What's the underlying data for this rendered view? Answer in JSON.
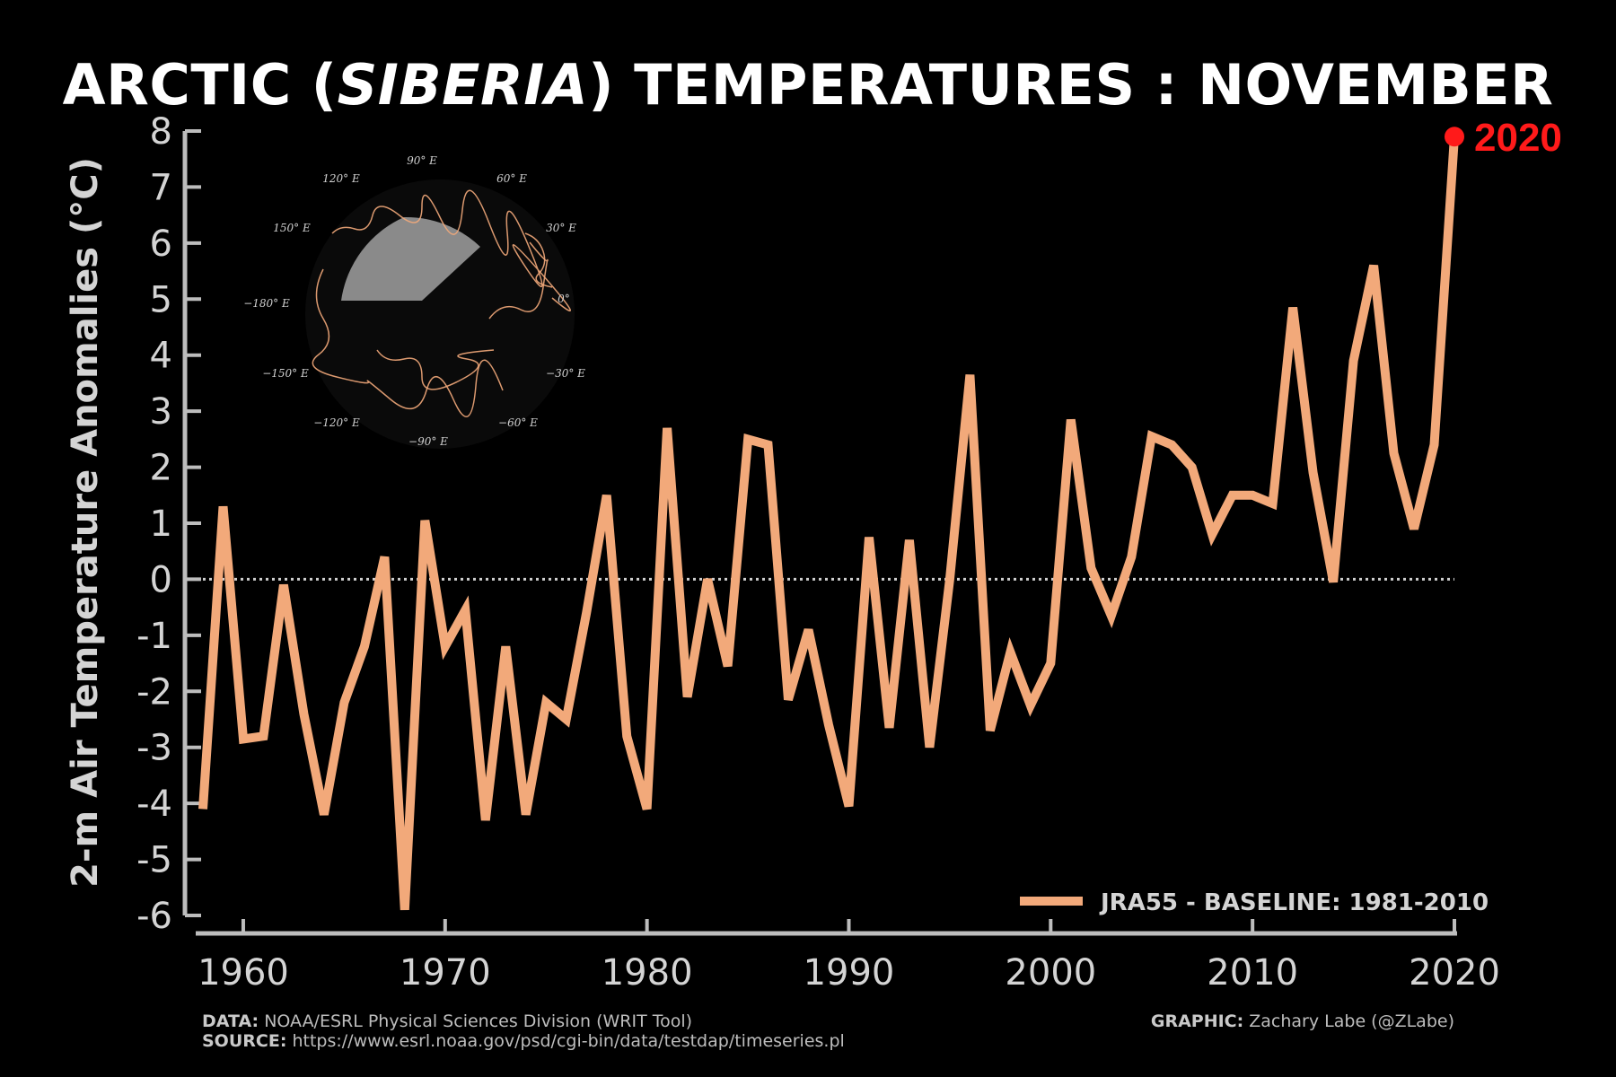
{
  "title": {
    "prefix": "ARCTIC (",
    "italic": "SIBERIA",
    "suffix": ") TEMPERATURES : NOVEMBER"
  },
  "colors": {
    "background": "#000000",
    "line": "#f2a97a",
    "highlight": "#ff1a1a",
    "axis": "#bdbdbd",
    "text": "#d4d4d4"
  },
  "footer": {
    "data_label": "DATA:",
    "data_text": "NOAA/ESRL Physical Sciences Division (WRIT Tool)",
    "source_label": "SOURCE:",
    "source_text": "https://www.esrl.noaa.gov/psd/cgi-bin/data/testdap/timeseries.pl",
    "graphic_label": "GRAPHIC:",
    "graphic_text": "Zachary Labe (@ZLabe)"
  },
  "inset_map": {
    "labels": [
      "90° E",
      "60° E",
      "120° E",
      "150° E",
      "30° E",
      "−180° E",
      "0°",
      "−150° E",
      "−30° E",
      "−120° E",
      "−60° E",
      "−90° E"
    ]
  },
  "chart_data": {
    "type": "line",
    "title": "ARCTIC (SIBERIA) TEMPERATURES : NOVEMBER",
    "xlabel": "",
    "ylabel": "2-m Air Temperature Anomalies (°C)",
    "xlim": [
      1958,
      2020
    ],
    "ylim": [
      -6,
      8
    ],
    "xticks": [
      1960,
      1970,
      1980,
      1990,
      2000,
      2010,
      2020
    ],
    "yticks": [
      -6,
      -5,
      -4,
      -3,
      -2,
      -1,
      0,
      1,
      2,
      3,
      4,
      5,
      6,
      7,
      8
    ],
    "zero_line": true,
    "legend": {
      "position": "bottom-right",
      "label": "JRA55 - BASELINE: 1981-2010"
    },
    "highlight": {
      "x": 2020,
      "y": 7.9,
      "label": "2020"
    },
    "series": [
      {
        "name": "JRA55 - BASELINE: 1981-2010",
        "x": [
          1958,
          1959,
          1960,
          1961,
          1962,
          1963,
          1964,
          1965,
          1966,
          1967,
          1968,
          1969,
          1970,
          1971,
          1972,
          1973,
          1974,
          1975,
          1976,
          1977,
          1978,
          1979,
          1980,
          1981,
          1982,
          1983,
          1984,
          1985,
          1986,
          1987,
          1988,
          1989,
          1990,
          1991,
          1992,
          1993,
          1994,
          1995,
          1996,
          1997,
          1998,
          1999,
          2000,
          2001,
          2002,
          2003,
          2004,
          2005,
          2006,
          2007,
          2008,
          2009,
          2010,
          2011,
          2012,
          2013,
          2014,
          2015,
          2016,
          2017,
          2018,
          2019,
          2020
        ],
        "values": [
          -4.1,
          1.3,
          -2.85,
          -2.8,
          -0.1,
          -2.4,
          -4.2,
          -2.2,
          -1.2,
          0.4,
          -5.9,
          1.05,
          -1.2,
          -0.55,
          -4.3,
          -1.2,
          -4.2,
          -2.2,
          -2.5,
          -0.6,
          1.5,
          -2.8,
          -4.1,
          2.7,
          -2.1,
          0.0,
          -1.55,
          2.5,
          2.4,
          -2.15,
          -0.9,
          -2.6,
          -4.05,
          0.75,
          -2.65,
          0.7,
          -3.0,
          0.0,
          3.65,
          -2.7,
          -1.3,
          -2.25,
          -1.5,
          2.85,
          0.2,
          -0.65,
          0.4,
          2.55,
          2.4,
          2.0,
          0.8,
          1.5,
          1.5,
          1.35,
          4.85,
          1.9,
          -0.05,
          3.9,
          5.6,
          2.25,
          0.9,
          2.4,
          7.9
        ]
      }
    ]
  }
}
